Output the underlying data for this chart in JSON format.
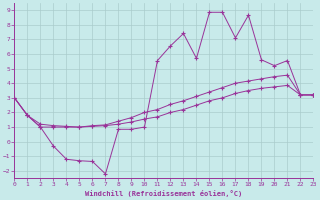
{
  "xlabel": "Windchill (Refroidissement éolien,°C)",
  "bg_color": "#c8eaea",
  "line_color": "#993399",
  "grid_color": "#aacccc",
  "x_ticks": [
    0,
    1,
    2,
    3,
    4,
    5,
    6,
    7,
    8,
    9,
    10,
    11,
    12,
    13,
    14,
    15,
    16,
    17,
    18,
    19,
    20,
    21,
    22,
    23
  ],
  "y_ticks": [
    -2,
    -1,
    0,
    1,
    2,
    3,
    4,
    5,
    6,
    7,
    8,
    9
  ],
  "xlim": [
    0,
    23
  ],
  "ylim": [
    -2.5,
    9.5
  ],
  "line1_x": [
    0,
    1,
    2,
    3,
    4,
    5,
    6,
    7,
    8,
    9,
    10,
    11,
    12,
    13,
    14,
    15,
    16,
    17,
    18,
    19,
    20,
    21,
    22,
    23
  ],
  "line1_y": [
    3.0,
    1.8,
    1.0,
    1.0,
    1.0,
    1.0,
    1.05,
    1.1,
    1.2,
    1.35,
    1.55,
    1.7,
    2.0,
    2.2,
    2.5,
    2.8,
    3.0,
    3.3,
    3.5,
    3.65,
    3.75,
    3.85,
    3.2,
    3.2
  ],
  "line2_x": [
    0,
    1,
    2,
    3,
    4,
    5,
    6,
    7,
    8,
    9,
    10,
    11,
    12,
    13,
    14,
    15,
    16,
    17,
    18,
    19,
    20,
    21,
    22,
    23
  ],
  "line2_y": [
    3.0,
    1.8,
    1.2,
    1.1,
    1.05,
    1.0,
    1.1,
    1.15,
    1.4,
    1.65,
    2.0,
    2.2,
    2.55,
    2.8,
    3.1,
    3.4,
    3.7,
    4.0,
    4.15,
    4.3,
    4.45,
    4.55,
    3.2,
    3.2
  ],
  "line3_x": [
    0,
    1,
    2,
    3,
    4,
    5,
    6,
    7,
    8,
    9,
    10,
    11,
    12,
    13,
    14,
    15,
    16,
    17,
    18,
    19,
    20,
    21,
    22,
    23
  ],
  "line3_y": [
    3.0,
    1.8,
    1.0,
    -0.3,
    -1.2,
    -1.3,
    -1.35,
    -2.2,
    0.85,
    0.85,
    1.0,
    5.55,
    6.55,
    7.4,
    5.7,
    8.85,
    8.85,
    7.1,
    8.65,
    5.6,
    5.2,
    5.55,
    3.2,
    3.2
  ]
}
